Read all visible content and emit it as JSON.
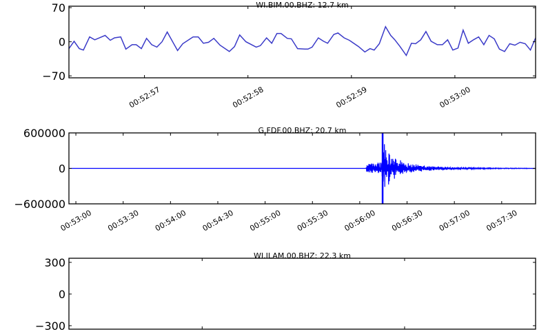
{
  "chart_data": [
    {
      "type": "line",
      "title": "WI.BIM.00.BHZ: 12.7 km",
      "ylim": [
        -74,
        73
      ],
      "yticks": [
        70,
        0,
        -70
      ],
      "ytick_labels": [
        "70",
        "0",
        "−70"
      ],
      "xlim": [
        "00:52:56.27",
        "00:53:00.78"
      ],
      "xticks": [
        "00:52:57",
        "00:52:58",
        "00:52:59",
        "00:53:00"
      ],
      "xtick_labels": [
        "00:52:57",
        "00:52:58",
        "00:52:59",
        "00:53:00"
      ],
      "grid": false,
      "line_color": "#3a3ac8",
      "series": [
        {
          "t": [
            "00:52:56.27",
            "00:52:56.32",
            "00:52:56.37",
            "00:52:56.41",
            "00:52:56.47",
            "00:52:56.52",
            "00:52:56.62",
            "00:52:56.67",
            "00:52:56.71",
            "00:52:56.77",
            "00:52:56.82",
            "00:52:56.88",
            "00:52:56.92",
            "00:52:56.97",
            "00:52:57.02",
            "00:52:57.07",
            "00:52:57.12",
            "00:52:57.17",
            "00:52:57.22",
            "00:52:57.32",
            "00:52:57.37",
            "00:52:57.47",
            "00:52:57.52",
            "00:52:57.57",
            "00:52:57.62",
            "00:52:57.67",
            "00:52:57.73",
            "00:52:57.82",
            "00:52:57.87",
            "00:52:57.92",
            "00:52:57.98",
            "00:52:58.08",
            "00:52:58.12",
            "00:52:58.18",
            "00:52:58.23",
            "00:52:58.28",
            "00:52:58.32",
            "00:52:58.38",
            "00:52:58.42",
            "00:52:58.48",
            "00:52:58.55",
            "00:52:58.58",
            "00:52:58.62",
            "00:52:58.68",
            "00:52:58.73",
            "00:52:58.77",
            "00:52:58.83",
            "00:52:58.87",
            "00:52:58.93",
            "00:52:58.98",
            "00:52:59.07",
            "00:52:59.13",
            "00:52:59.18",
            "00:52:59.22",
            "00:52:59.27",
            "00:52:59.33",
            "00:52:59.38",
            "00:52:59.42",
            "00:52:59.47",
            "00:52:59.53",
            "00:52:59.58",
            "00:52:59.62",
            "00:52:59.67",
            "00:52:59.72",
            "00:52:59.77",
            "00:52:59.83",
            "00:52:59.88",
            "00:52:59.93",
            "00:52:59.98",
            "00:53:00.03",
            "00:53:00.08",
            "00:53:00.13",
            "00:53:00.18",
            "00:53:00.23",
            "00:53:00.28",
            "00:53:00.33",
            "00:53:00.38",
            "00:53:00.43",
            "00:53:00.48",
            "00:53:00.53",
            "00:53:00.58",
            "00:53:00.63",
            "00:53:00.68",
            "00:53:00.73",
            "00:53:00.78"
          ],
          "values": [
            -14,
            1,
            -14,
            -17,
            10,
            4,
            13,
            3,
            8,
            10,
            -15,
            -6,
            -6,
            -14,
            7,
            -6,
            -11,
            0,
            20,
            -18,
            -4,
            10,
            10,
            -3,
            -1,
            7,
            -7,
            -20,
            -10,
            14,
            0,
            -11,
            -8,
            8,
            -3,
            17,
            17,
            7,
            6,
            -14,
            -15,
            -15,
            -11,
            8,
            1,
            -3,
            15,
            18,
            8,
            3,
            -10,
            -21,
            -14,
            -17,
            -4,
            31,
            13,
            4,
            -10,
            -28,
            -3,
            -4,
            4,
            21,
            1,
            -6,
            -6,
            4,
            -17,
            -13,
            24,
            -3,
            4,
            10,
            -6,
            13,
            6,
            -15,
            -20,
            -4,
            -7,
            -1,
            -4,
            -17,
            8
          ]
        }
      ]
    },
    {
      "type": "line",
      "title": "G.FDF.00.BHZ: 20.7 km",
      "ylim": [
        -600000,
        600000
      ],
      "yticks": [
        600000,
        0,
        -600000
      ],
      "ytick_labels": [
        "600000",
        "0",
        "−600000"
      ],
      "xlim": [
        "00:52:55.6",
        "00:57:51.5"
      ],
      "xticks": [
        "00:53:00",
        "00:53:30",
        "00:54:00",
        "00:54:30",
        "00:55:00",
        "00:55:30",
        "00:56:00",
        "00:56:30",
        "00:57:00",
        "00:57:30"
      ],
      "xtick_labels": [
        "00:53:00",
        "00:53:30",
        "00:54:00",
        "00:54:30",
        "00:55:00",
        "00:55:30",
        "00:56:00",
        "00:56:30",
        "00:57:00",
        "00:57:30"
      ],
      "grid": false,
      "line_color": "#0000ff",
      "series": [
        {
          "onset": "00:56:04",
          "peak": {
            "t": "00:56:14.5",
            "amplitude": 700000
          },
          "envelope": {
            "t": [
              "00:56:04",
              "00:56:10",
              "00:56:14",
              "00:56:14.5",
              "00:56:16",
              "00:56:20",
              "00:56:25",
              "00:56:30",
              "00:56:40",
              "00:56:50",
              "00:57:00",
              "00:57:15",
              "00:57:30",
              "00:57:51"
            ],
            "amplitude": [
              70000,
              90000,
              110000,
              700000,
              350000,
              230000,
              150000,
              90000,
              50000,
              30000,
              18000,
              10000,
              5000,
              3000
            ]
          }
        }
      ]
    },
    {
      "type": "line",
      "title": "WI.ILAM.00.BHZ: 22.3 km",
      "ylim": [
        -333,
        339
      ],
      "yticks": [
        300,
        0,
        -300
      ],
      "ytick_labels": [
        "300",
        "0",
        "−300"
      ],
      "grid": false,
      "series": []
    }
  ]
}
